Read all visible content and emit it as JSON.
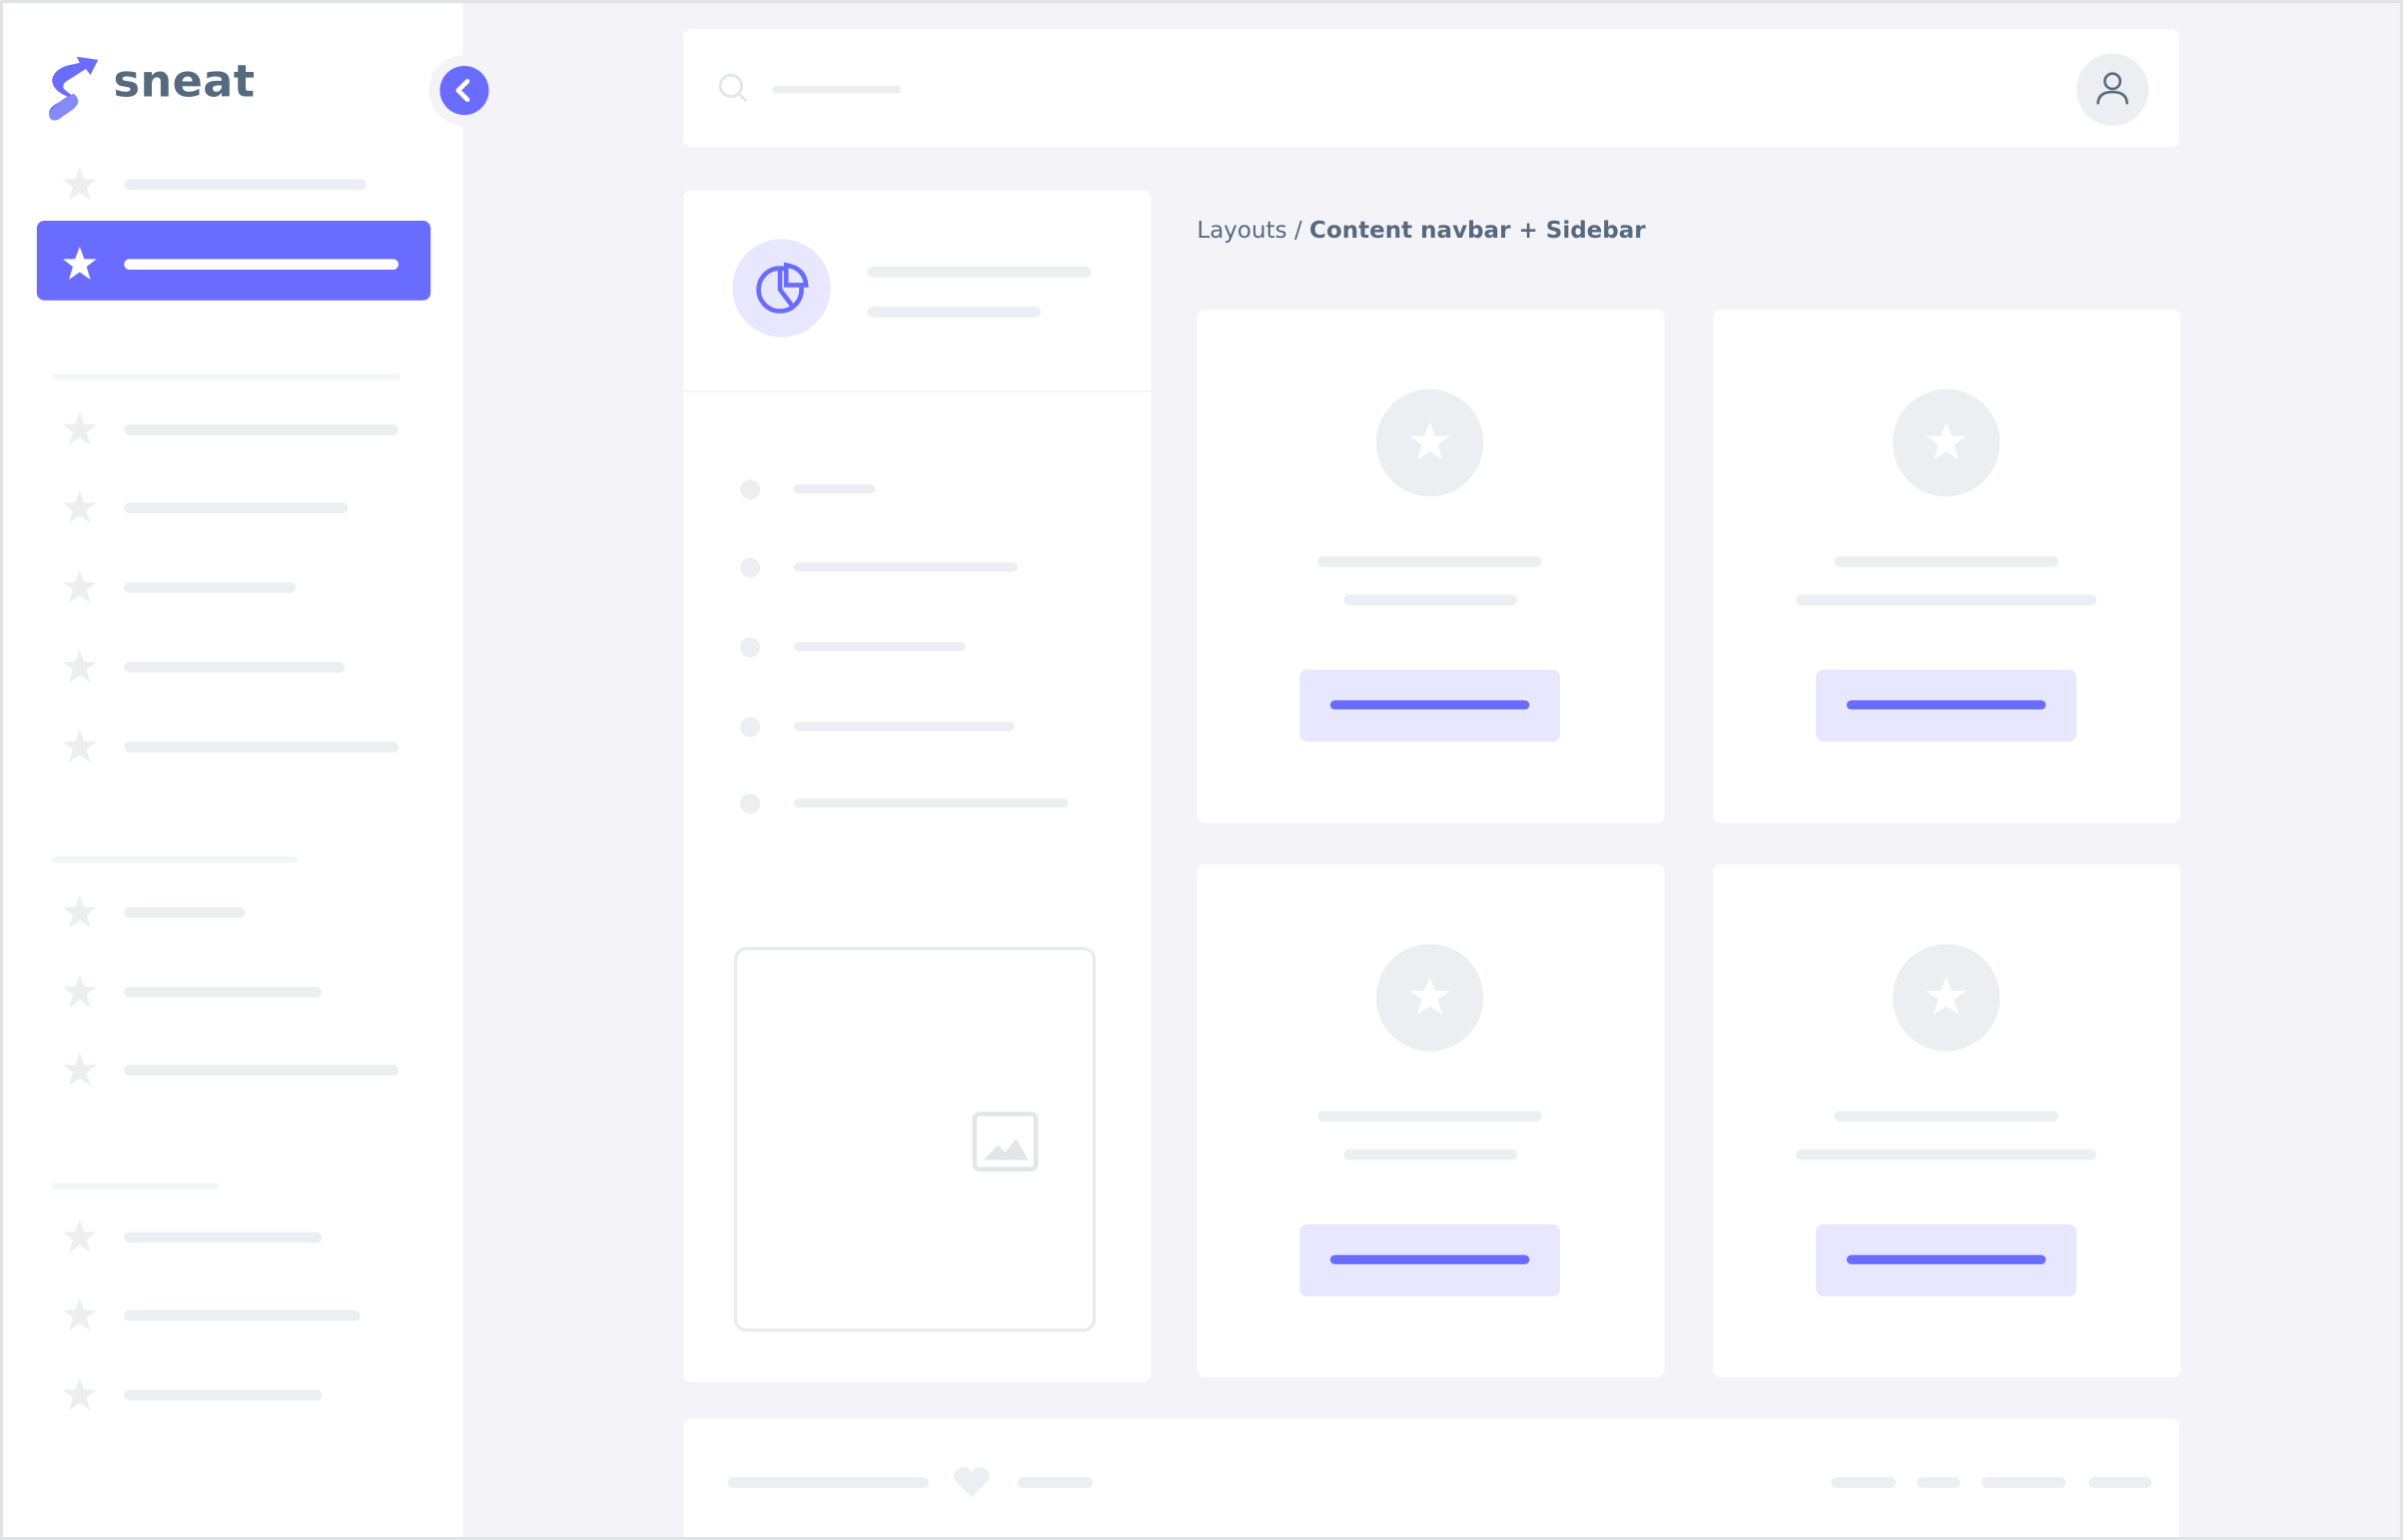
{
  "brand": {
    "name": "sneat",
    "accent_color": "#696cff",
    "text_color": "#566a7f",
    "placeholder_color": "#eceef1",
    "soft_accent_color": "#e7e7ff"
  },
  "sidebar": {
    "toggle_icon": "chevron-left-icon",
    "item_icon": "star-icon",
    "active_index": 1
  },
  "navbar": {
    "search_icon": "search-icon",
    "avatar_icon": "user-icon"
  },
  "breadcrumb": {
    "parent": "Layouts",
    "separator": "/",
    "current": "Content navbar + Sidebar"
  },
  "side_panel": {
    "header_icon": "pie-chart-icon",
    "image_icon": "image-icon"
  },
  "footer": {
    "icon": "heart-icon"
  }
}
